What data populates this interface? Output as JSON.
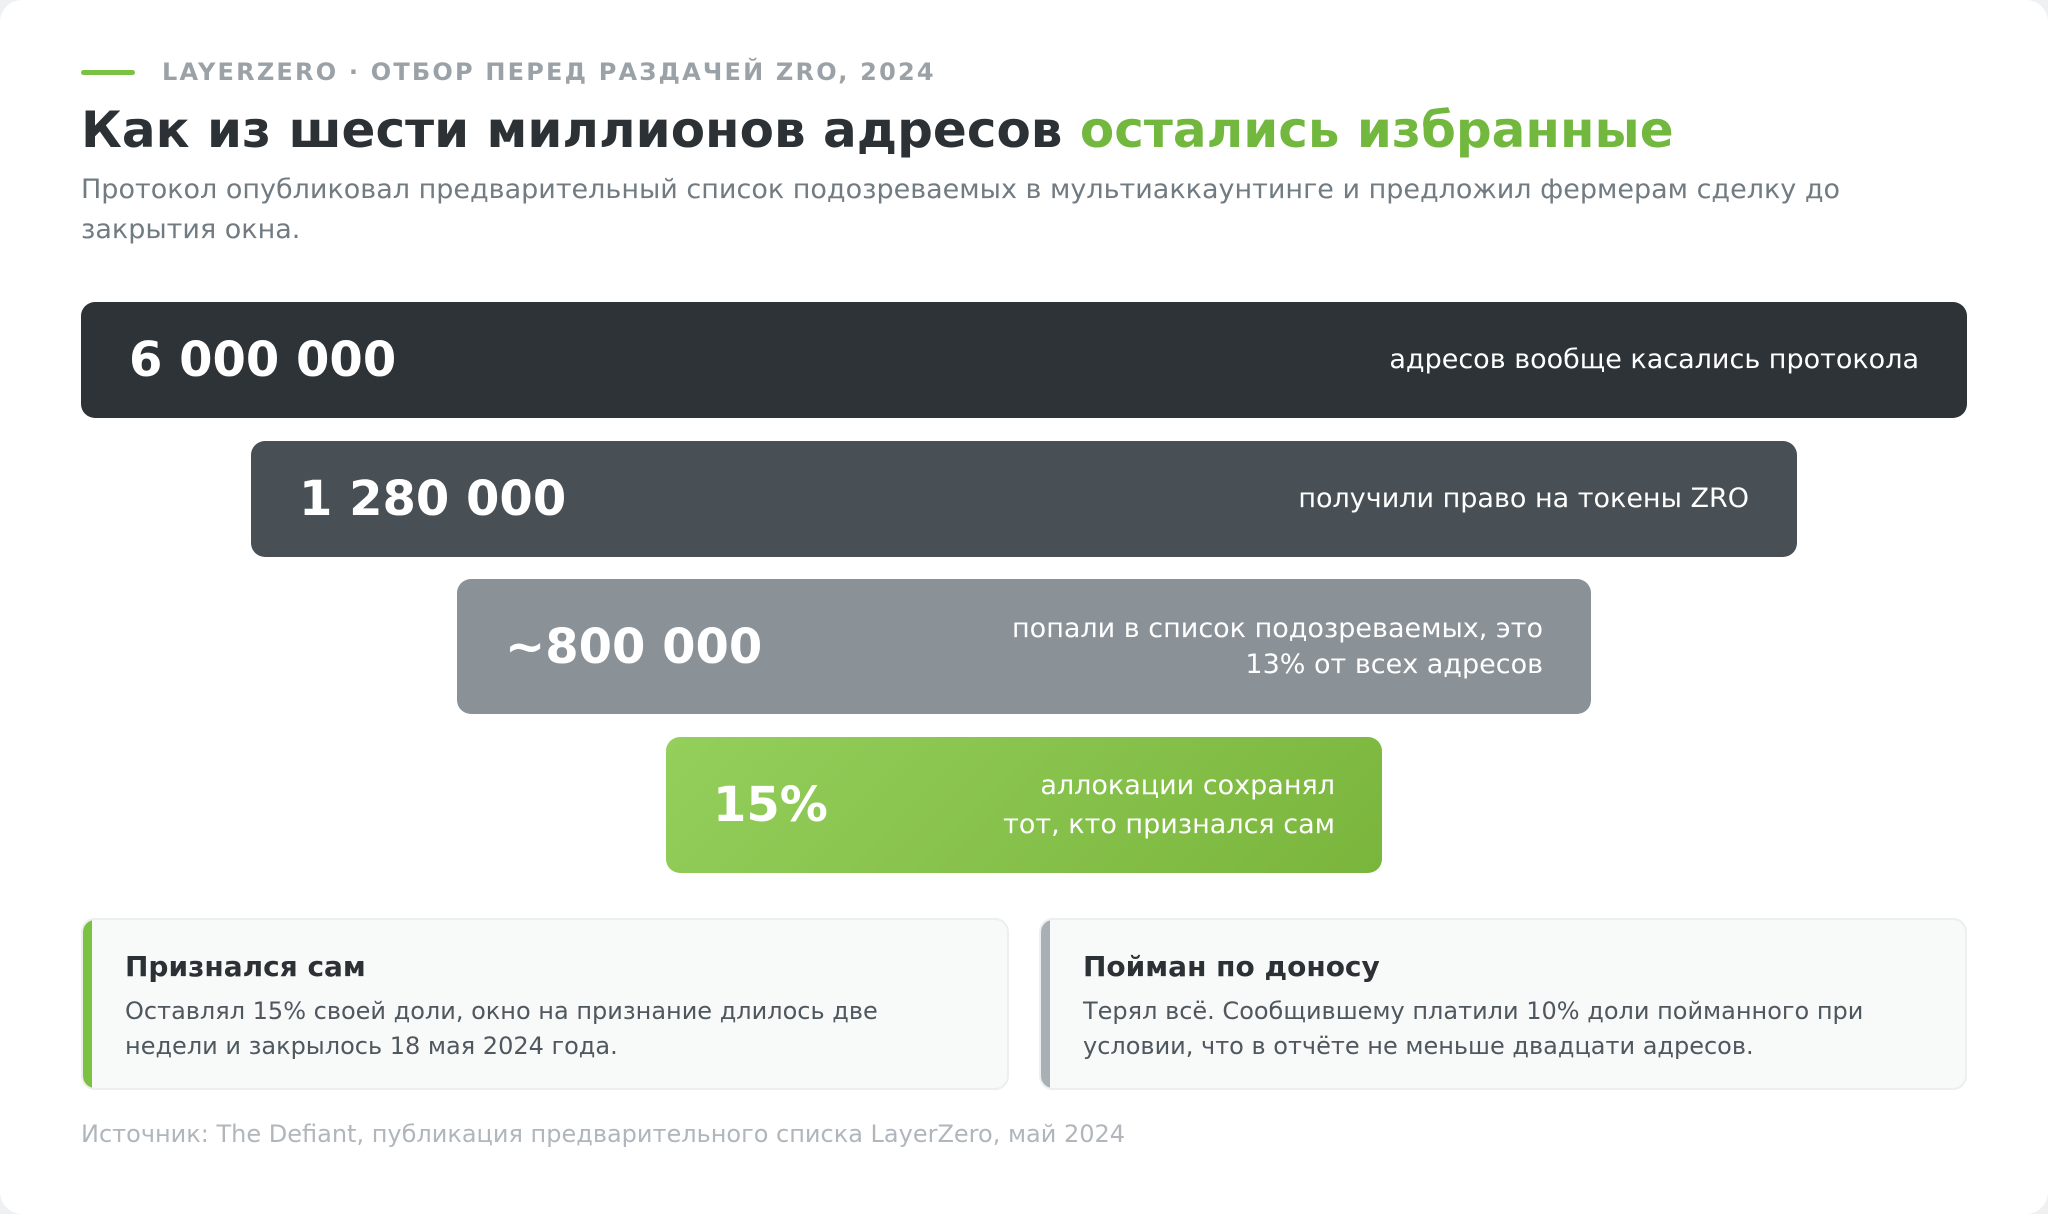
{
  "header": {
    "eyebrow": "LAYERZERO · ОТБОР ПЕРЕД РАЗДАЧЕЙ ZRO, 2024",
    "title_main": "Как из шести миллионов адресов ",
    "title_accent": "остались избранные",
    "subtitle": "Протокол опубликовал предварительный список подозреваемых в мультиаккаунтинге и предложил фермерам сделку до закрытия окна."
  },
  "funnel": [
    {
      "value": "6 000 000",
      "label": "адресов вообще касались протокола",
      "color": "#2d3336"
    },
    {
      "value": "1 280 000",
      "label": "получили право на токены ZRO",
      "color": "#495055"
    },
    {
      "value": "~800 000",
      "label_line1": "попали в список подозреваемых, это",
      "label_line2": "13% от всех адресов",
      "color": "#8a9197"
    },
    {
      "value": "15%",
      "label_line1": "аллокации сохранял",
      "label_line2": "тот, кто признался сам",
      "color": "#86c24c"
    }
  ],
  "outcomes": [
    {
      "title": "Признался сам",
      "text": "Оставлял 15% своей доли, окно на признание длилось две недели и закрылось 18 мая 2024 года."
    },
    {
      "title": "Пойман по доносу",
      "text": "Терял всё. Сообщившему платили 10% доли пойманного при условии, что в отчёте не меньше двадцати адресов."
    }
  ],
  "source": "Источник: The Defiant, публикация предварительного списка LayerZero, май 2024",
  "colors": {
    "accent": "#72b83e",
    "accent_line": "#7cc242",
    "title": "#2b3134",
    "muted": "#717b82"
  }
}
